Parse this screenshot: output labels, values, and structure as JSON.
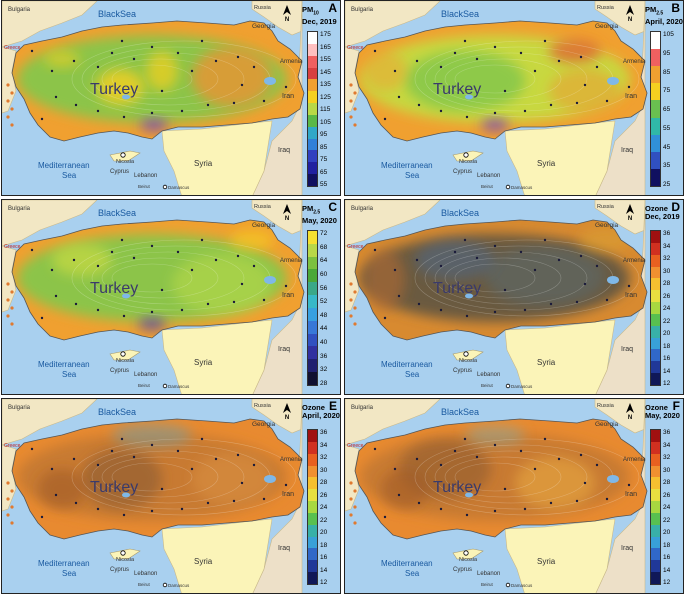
{
  "labels": {
    "bulgaria": "Bulgaria",
    "black_sea": "BlackSea",
    "russia": "Russia",
    "georgia": "Georgia",
    "armenia": "Armenia",
    "iran": "Iran",
    "iraq": "Iraq",
    "syria": "Syria",
    "turkey": "Turkey",
    "mediterranean": "Mediterranean",
    "sea": "Sea",
    "cyprus": "Cyprus",
    "nicosia": "Nicosia",
    "lebanon": "Lebanon",
    "beirut": "Beirut",
    "damascus": "Damascus",
    "greece": "Greece",
    "north": "N"
  },
  "panels": [
    {
      "letter": "A",
      "title": "PM",
      "sub": "10",
      "period": "Dec, 2019",
      "ticks": [
        "175",
        "165",
        "155",
        "145",
        "135",
        "125",
        "115",
        "105",
        "95",
        "85",
        "75",
        "65",
        "55"
      ],
      "colors": [
        "#ffffff",
        "#ffc0c0",
        "#f06060",
        "#d84040",
        "#f0a030",
        "#f5d020",
        "#b8d848",
        "#5ab848",
        "#30a8c8",
        "#3080d8",
        "#3040c0",
        "#2020a0",
        "#101060"
      ],
      "theme": "pm10dec"
    },
    {
      "letter": "B",
      "title": "PM",
      "sub": "2.5",
      "period": "April, 2020",
      "ticks": [
        "105",
        "95",
        "85",
        "75",
        "65",
        "55",
        "45",
        "35",
        "25"
      ],
      "colors": [
        "#ffffff",
        "#f06060",
        "#f0a030",
        "#f5d020",
        "#6ac050",
        "#30b8a8",
        "#3090d8",
        "#3050c0",
        "#101060"
      ],
      "theme": "pm25apr"
    },
    {
      "letter": "C",
      "title": "PM",
      "sub": "2.5",
      "period": "May, 2020",
      "ticks": [
        "72",
        "68",
        "64",
        "60",
        "56",
        "52",
        "48",
        "44",
        "40",
        "36",
        "32",
        "28"
      ],
      "colors": [
        "#f5e030",
        "#b8d848",
        "#7cc040",
        "#4aa838",
        "#3aa888",
        "#38b8c8",
        "#38a0e0",
        "#3878d8",
        "#3050c0",
        "#3030a0",
        "#202070",
        "#101030"
      ],
      "theme": "pm25may"
    },
    {
      "letter": "D",
      "title": "Ozone",
      "sub": "",
      "period": "Dec, 2019",
      "ticks": [
        "36",
        "34",
        "32",
        "30",
        "28",
        "26",
        "24",
        "22",
        "20",
        "18",
        "16",
        "14",
        "12"
      ],
      "colors": [
        "#a01010",
        "#d03020",
        "#e86020",
        "#f09030",
        "#f5c030",
        "#e8e040",
        "#a8d840",
        "#58c050",
        "#38b0a8",
        "#38a0d8",
        "#3068c8",
        "#203898",
        "#101858"
      ],
      "theme": "ozdec"
    },
    {
      "letter": "E",
      "title": "Ozone",
      "sub": "",
      "period": "April, 2020",
      "ticks": [
        "36",
        "34",
        "32",
        "30",
        "28",
        "26",
        "24",
        "22",
        "20",
        "18",
        "16",
        "14",
        "12"
      ],
      "colors": [
        "#a01010",
        "#d03020",
        "#e86020",
        "#f09030",
        "#f5c030",
        "#e8e040",
        "#a8d840",
        "#58c050",
        "#38b0a8",
        "#38a0d8",
        "#3068c8",
        "#203898",
        "#101858"
      ],
      "theme": "ozapr"
    },
    {
      "letter": "F",
      "title": "Ozone",
      "sub": "",
      "period": "May, 2020",
      "ticks": [
        "36",
        "34",
        "32",
        "30",
        "28",
        "26",
        "24",
        "22",
        "20",
        "18",
        "16",
        "14",
        "12"
      ],
      "colors": [
        "#a01010",
        "#d03020",
        "#e86020",
        "#f09030",
        "#f5c030",
        "#e8e040",
        "#a8d840",
        "#58c050",
        "#38b0a8",
        "#38a0d8",
        "#3068c8",
        "#203898",
        "#101858"
      ],
      "theme": "ozmay"
    }
  ]
}
